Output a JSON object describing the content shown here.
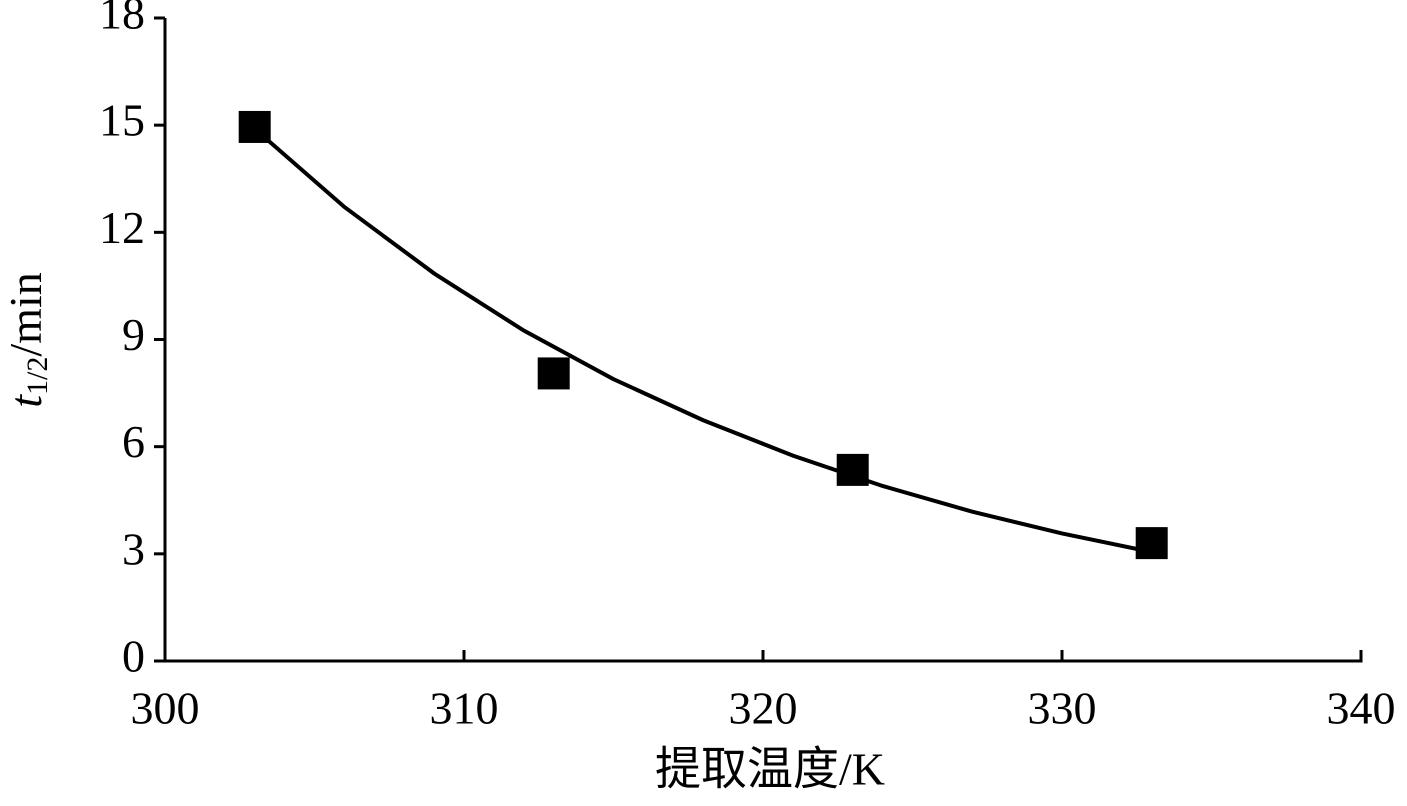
{
  "chart_data": {
    "type": "scatter",
    "xlabel": "提取温度/K",
    "ylabel": {
      "symbol": "t",
      "subscript": "1/2",
      "unit": "/min"
    },
    "xlim": [
      300,
      340
    ],
    "xticks": [
      300,
      310,
      320,
      330,
      340
    ],
    "ylim": [
      0,
      18
    ],
    "yticks": [
      0,
      3,
      6,
      9,
      12,
      15,
      18
    ],
    "series": [
      {
        "mode": "markers",
        "marker": "square",
        "color": "#000000",
        "x": [
          303,
          313,
          323,
          333
        ],
        "values": [
          14.95,
          8.05,
          5.35,
          3.3
        ]
      },
      {
        "mode": "line",
        "color": "#000000",
        "x": [
          303,
          306,
          309,
          312,
          315,
          318,
          321,
          324,
          327,
          330,
          333
        ],
        "values": [
          14.9,
          12.71,
          10.85,
          9.25,
          7.89,
          6.74,
          5.75,
          4.9,
          4.18,
          3.57,
          3.05
        ]
      }
    ]
  }
}
